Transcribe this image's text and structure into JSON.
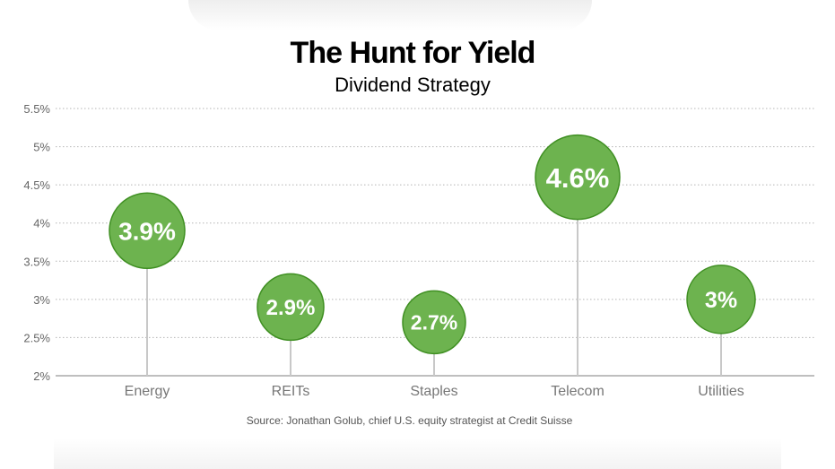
{
  "title": "The Hunt for Yield",
  "subtitle": "Dividend Strategy",
  "source": "Source: Jonathan Golub, chief U.S. equity strategist at Credit Suisse",
  "colors": {
    "bubble_fill": "#6db34f",
    "bubble_stroke": "#3f8f22",
    "stem": "#c8c8c8",
    "grid": "#b5b5b5",
    "axis_text": "#666666",
    "category_text": "#777777"
  },
  "chart_data": {
    "type": "lollipop",
    "categories": [
      "Energy",
      "REITs",
      "Staples",
      "Telecom",
      "Utilities"
    ],
    "values": [
      3.9,
      2.9,
      2.7,
      4.6,
      3.0
    ],
    "value_labels": [
      "3.9%",
      "2.9%",
      "2.7%",
      "4.6%",
      "3%"
    ],
    "ylim": [
      2,
      5.5
    ],
    "yticks": [
      2,
      2.5,
      3,
      3.5,
      4,
      4.5,
      5,
      5.5
    ],
    "ytick_labels": [
      "2%",
      "2.5%",
      "3%",
      "3.5%",
      "4%",
      "4.5%",
      "5%",
      "5.5%"
    ],
    "xlabel": "",
    "ylabel": "",
    "grid": true,
    "legend": "none"
  }
}
